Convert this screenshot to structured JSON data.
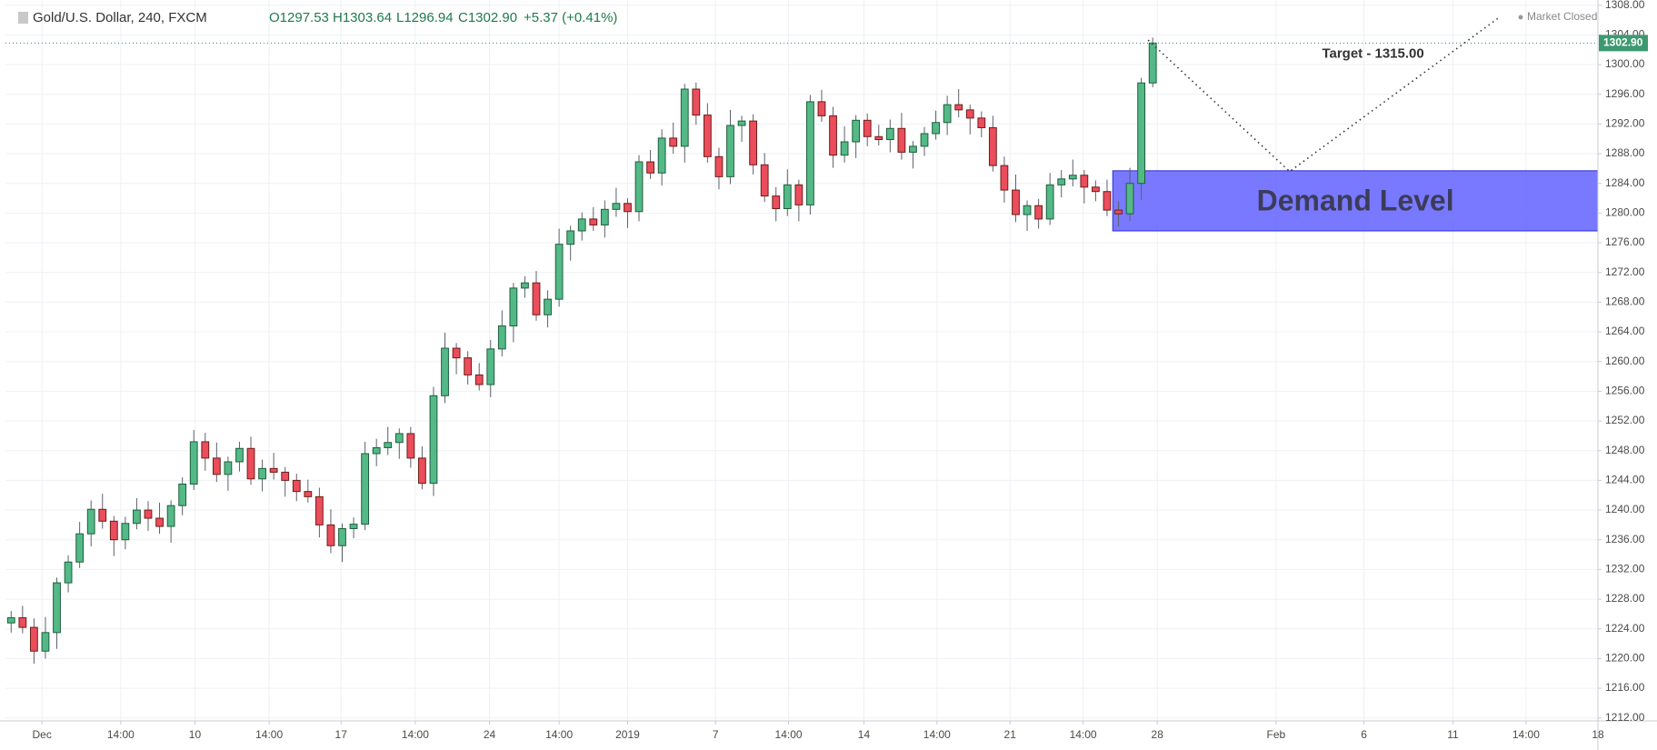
{
  "chart_data": {
    "type": "candlestick",
    "title": "Gold/U.S. Dollar, 240, FXCM",
    "ohlc_header": [
      "O1297.53",
      "H1303.64",
      "L1296.94",
      "C1302.90",
      "+5.37 (+0.41%)"
    ],
    "status": "Market Closed",
    "last_price": {
      "value": 1302.9,
      "label": "1302.90"
    },
    "up_color": "#53b987",
    "down_color": "#eb4d5c",
    "grid": true,
    "xlim": [
      -0.5,
      139
    ],
    "ylim": [
      1211.6,
      1308.7
    ],
    "xticks": [
      {
        "value": 2.7,
        "label": "Dec"
      },
      {
        "value": 9.6,
        "label": "14:00"
      },
      {
        "value": 16.1,
        "label": "10"
      },
      {
        "value": 22.6,
        "label": "14:00"
      },
      {
        "value": 28.9,
        "label": "17"
      },
      {
        "value": 35.4,
        "label": "14:00"
      },
      {
        "value": 41.9,
        "label": "24"
      },
      {
        "value": 48.0,
        "label": "14:00"
      },
      {
        "value": 54.0,
        "label": "2019"
      },
      {
        "value": 61.7,
        "label": "7"
      },
      {
        "value": 68.1,
        "label": "14:00"
      },
      {
        "value": 74.7,
        "label": "14"
      },
      {
        "value": 81.1,
        "label": "14:00"
      },
      {
        "value": 87.5,
        "label": "21"
      },
      {
        "value": 93.9,
        "label": "14:00"
      },
      {
        "value": 100.4,
        "label": "28"
      },
      {
        "value": 110.8,
        "label": "Feb"
      },
      {
        "value": 118.5,
        "label": "6"
      },
      {
        "value": 126.3,
        "label": "11"
      },
      {
        "value": 132.7,
        "label": "14:00"
      },
      {
        "value": 139,
        "label": "18"
      }
    ],
    "yticks": [
      {
        "value": 1212,
        "label": "1212.00"
      },
      {
        "value": 1216,
        "label": "1216.00"
      },
      {
        "value": 1220,
        "label": "1220.00"
      },
      {
        "value": 1224,
        "label": "1224.00"
      },
      {
        "value": 1228,
        "label": "1228.00"
      },
      {
        "value": 1232,
        "label": "1232.00"
      },
      {
        "value": 1236,
        "label": "1236.00"
      },
      {
        "value": 1240,
        "label": "1240.00"
      },
      {
        "value": 1244,
        "label": "1244.00"
      },
      {
        "value": 1248,
        "label": "1248.00"
      },
      {
        "value": 1252,
        "label": "1252.00"
      },
      {
        "value": 1256,
        "label": "1256.00"
      },
      {
        "value": 1260,
        "label": "1260.00"
      },
      {
        "value": 1264,
        "label": "1264.00"
      },
      {
        "value": 1268,
        "label": "1268.00"
      },
      {
        "value": 1272,
        "label": "1272.00"
      },
      {
        "value": 1276,
        "label": "1276.00"
      },
      {
        "value": 1280,
        "label": "1280.00"
      },
      {
        "value": 1284,
        "label": "1284.00"
      },
      {
        "value": 1288,
        "label": "1288.00"
      },
      {
        "value": 1292,
        "label": "1292.00"
      },
      {
        "value": 1296,
        "label": "1296.00"
      },
      {
        "value": 1300,
        "label": "1300.00"
      },
      {
        "value": 1304,
        "label": "1304.00"
      },
      {
        "value": 1308,
        "label": "1308.00"
      }
    ],
    "open": [
      1224.8,
      1225.5,
      1224.2,
      1221.0,
      1223.5,
      1230.2,
      1233.0,
      1236.8,
      1240.1,
      1238.5,
      1236.0,
      1238.2,
      1240.0,
      1238.9,
      1237.8,
      1240.6,
      1243.5,
      1249.2,
      1247.0,
      1244.8,
      1246.5,
      1248.3,
      1244.2,
      1245.6,
      1245.1,
      1244.0,
      1242.5,
      1241.8,
      1238.0,
      1235.2,
      1237.5,
      1238.1,
      1247.6,
      1248.4,
      1249.1,
      1250.3,
      1247.0,
      1243.6,
      1255.4,
      1261.8,
      1260.5,
      1258.2,
      1256.9,
      1261.7,
      1264.8,
      1269.9,
      1270.6,
      1266.3,
      1268.4,
      1275.8,
      1277.6,
      1279.2,
      1278.4,
      1280.5,
      1281.3,
      1280.2,
      1286.9,
      1285.4,
      1290.1,
      1289.0,
      1296.7,
      1293.2,
      1287.6,
      1284.9,
      1291.8,
      1292.4,
      1286.5,
      1282.3,
      1280.6,
      1283.8,
      1281.1,
      1295.0,
      1293.1,
      1287.8,
      1289.6,
      1292.5,
      1290.3,
      1289.9,
      1291.4,
      1288.2,
      1289.0,
      1290.7,
      1292.2,
      1294.6,
      1293.9,
      1292.8,
      1291.5,
      1286.4,
      1283.1,
      1279.8,
      1281.0,
      1279.2,
      1283.8,
      1284.6,
      1285.1,
      1283.5,
      1282.9,
      1280.4,
      1279.9,
      1284.0,
      1297.53
    ],
    "high": [
      1226.4,
      1227.1,
      1225.4,
      1225.6,
      1230.9,
      1233.9,
      1238.4,
      1241.3,
      1242.2,
      1239.2,
      1239.1,
      1241.6,
      1241.2,
      1241.0,
      1241.3,
      1244.4,
      1250.8,
      1250.4,
      1249.1,
      1247.2,
      1249.2,
      1249.9,
      1246.8,
      1247.7,
      1245.8,
      1244.9,
      1244.1,
      1243.0,
      1240.1,
      1238.2,
      1239.0,
      1249.2,
      1249.6,
      1251.2,
      1251.0,
      1251.2,
      1248.6,
      1256.6,
      1263.9,
      1262.5,
      1261.4,
      1259.8,
      1262.9,
      1266.9,
      1270.6,
      1271.5,
      1272.2,
      1269.6,
      1277.9,
      1278.3,
      1280.1,
      1280.8,
      1281.7,
      1283.4,
      1282.0,
      1287.8,
      1288.5,
      1291.3,
      1292.2,
      1297.4,
      1297.6,
      1294.8,
      1288.8,
      1293.9,
      1293.1,
      1293.3,
      1288.1,
      1283.5,
      1285.9,
      1284.5,
      1295.9,
      1296.6,
      1294.3,
      1291.7,
      1293.2,
      1293.4,
      1291.9,
      1292.6,
      1293.5,
      1289.7,
      1291.6,
      1293.8,
      1295.8,
      1296.7,
      1294.6,
      1293.7,
      1293.1,
      1287.6,
      1285.2,
      1281.7,
      1281.9,
      1285.4,
      1285.8,
      1287.2,
      1285.8,
      1284.4,
      1284.5,
      1281.6,
      1286.1,
      1298.23,
      1303.64
    ],
    "low": [
      1223.5,
      1223.4,
      1219.3,
      1220.0,
      1221.3,
      1228.9,
      1232.2,
      1235.1,
      1237.5,
      1233.8,
      1234.7,
      1237.4,
      1237.2,
      1236.8,
      1235.6,
      1239.3,
      1242.7,
      1245.3,
      1243.8,
      1242.6,
      1245.2,
      1243.4,
      1242.5,
      1244.1,
      1241.8,
      1241.2,
      1241.0,
      1236.3,
      1234.2,
      1233.0,
      1236.2,
      1237.3,
      1245.9,
      1247.4,
      1246.9,
      1245.7,
      1242.8,
      1241.9,
      1254.4,
      1258.3,
      1256.9,
      1256.1,
      1255.2,
      1260.7,
      1262.6,
      1268.6,
      1265.5,
      1264.6,
      1267.4,
      1273.6,
      1276.3,
      1277.6,
      1276.7,
      1279.5,
      1278.0,
      1278.9,
      1284.6,
      1283.7,
      1288.0,
      1286.8,
      1291.9,
      1286.8,
      1283.2,
      1283.9,
      1289.6,
      1285.2,
      1281.5,
      1278.9,
      1279.6,
      1278.9,
      1279.8,
      1292.3,
      1286.1,
      1286.8,
      1287.4,
      1289.0,
      1289.1,
      1288.2,
      1287.2,
      1286.0,
      1287.7,
      1289.9,
      1290.5,
      1292.9,
      1290.6,
      1290.2,
      1285.6,
      1281.4,
      1278.8,
      1277.6,
      1277.9,
      1278.4,
      1282.1,
      1283.6,
      1281.3,
      1281.6,
      1279.6,
      1278.2,
      1278.9,
      1281.8,
      1296.94
    ],
    "close": [
      1225.5,
      1224.2,
      1221.0,
      1223.5,
      1230.2,
      1233.0,
      1236.8,
      1240.1,
      1238.5,
      1236.0,
      1238.2,
      1240.0,
      1238.9,
      1237.8,
      1240.6,
      1243.5,
      1249.2,
      1247.0,
      1244.8,
      1246.5,
      1248.3,
      1244.2,
      1245.6,
      1245.1,
      1244.0,
      1242.5,
      1241.8,
      1238.0,
      1235.2,
      1237.5,
      1238.1,
      1247.6,
      1248.4,
      1249.1,
      1250.3,
      1247.0,
      1243.6,
      1255.4,
      1261.8,
      1260.5,
      1258.2,
      1256.9,
      1261.7,
      1264.8,
      1269.9,
      1270.6,
      1266.3,
      1268.4,
      1275.8,
      1277.6,
      1279.2,
      1278.4,
      1280.5,
      1281.3,
      1280.2,
      1286.9,
      1285.4,
      1290.1,
      1289.0,
      1296.7,
      1293.2,
      1287.6,
      1284.9,
      1291.8,
      1292.4,
      1286.5,
      1282.3,
      1280.6,
      1283.8,
      1281.1,
      1295.0,
      1293.1,
      1287.8,
      1289.6,
      1292.5,
      1290.3,
      1289.9,
      1291.4,
      1288.2,
      1289.0,
      1290.7,
      1292.2,
      1294.6,
      1293.9,
      1292.8,
      1291.5,
      1286.4,
      1283.1,
      1279.8,
      1281.0,
      1279.2,
      1283.8,
      1284.6,
      1285.1,
      1283.5,
      1282.9,
      1280.4,
      1279.9,
      1284.0,
      1297.53,
      1302.9
    ],
    "zone": {
      "label": "Demand Level",
      "x": [
        96.5,
        139
      ],
      "y": [
        1277.6,
        1285.7
      ],
      "color": "#5b5cff"
    },
    "projection": {
      "x": [
        99.6,
        112,
        130.3
      ],
      "y": [
        1303.3,
        1285.6,
        1306.3
      ]
    },
    "annotation": {
      "text": "Target - 1315.00",
      "x": 119.3,
      "y": 1301.4
    }
  }
}
